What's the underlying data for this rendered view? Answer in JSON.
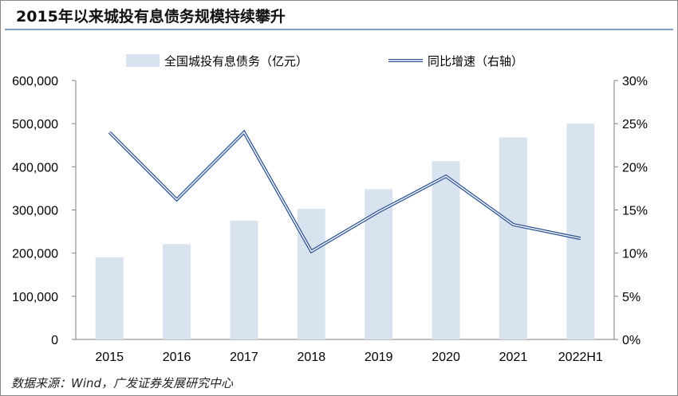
{
  "title": "2015年以来城投有息债务规模持续攀升",
  "source": "数据来源：Wind，广发证券发展研究中心",
  "chart_data": {
    "type": "bar+line",
    "categories": [
      "2015",
      "2016",
      "2017",
      "2018",
      "2019",
      "2020",
      "2021",
      "2022H1"
    ],
    "series": [
      {
        "name": "全国城投有息债务（亿元）",
        "type": "bar",
        "axis": "left",
        "values": [
          190000,
          221000,
          275000,
          303000,
          348000,
          413000,
          468000,
          500000
        ]
      },
      {
        "name": "同比增速（右轴）",
        "type": "line",
        "axis": "right",
        "values": [
          24.0,
          16.2,
          24.0,
          10.2,
          14.8,
          18.9,
          13.3,
          11.7
        ]
      }
    ],
    "y_left": {
      "min": 0,
      "max": 600000,
      "ticks": [
        "0",
        "100,000",
        "200,000",
        "300,000",
        "400,000",
        "500,000",
        "600,000"
      ]
    },
    "y_right": {
      "min": 0,
      "max": 30,
      "ticks": [
        "0%",
        "5%",
        "10%",
        "15%",
        "20%",
        "25%",
        "30%"
      ]
    },
    "legend_position": "top",
    "grid": false,
    "colors": {
      "bar": "#d9e3f0",
      "line_outer": "#2f5597",
      "line_inner": "#ffffff"
    }
  }
}
